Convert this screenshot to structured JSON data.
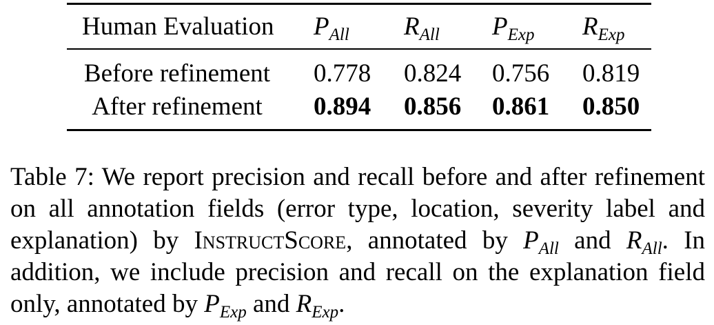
{
  "table": {
    "header": {
      "label": "Human Evaluation",
      "columns": [
        {
          "base": "P",
          "sub": "All"
        },
        {
          "base": "R",
          "sub": "All"
        },
        {
          "base": "P",
          "sub": "Exp"
        },
        {
          "base": "R",
          "sub": "Exp"
        }
      ]
    },
    "rows": [
      {
        "label": "Before refinement",
        "values": [
          "0.778",
          "0.824",
          "0.756",
          "0.819"
        ],
        "bold": false
      },
      {
        "label": "After refinement",
        "values": [
          "0.894",
          "0.856",
          "0.861",
          "0.850"
        ],
        "bold": true
      }
    ]
  },
  "caption": {
    "table_label": "Table 7:",
    "part1": "We report precision and recall before and after refinement on all annotation fields (error type, location, severity label and explanation) by",
    "system_name": "InstructScore",
    "part2": ", annotated by",
    "m1": {
      "base": "P",
      "sub": "All"
    },
    "and1": "and",
    "m2": {
      "base": "R",
      "sub": "All"
    },
    "part3": ". In addition, we include precision and recall on the explanation field only, annotated by",
    "m3": {
      "base": "P",
      "sub": "Exp"
    },
    "and2": "and",
    "m4": {
      "base": "R",
      "sub": "Exp"
    },
    "end": "."
  }
}
